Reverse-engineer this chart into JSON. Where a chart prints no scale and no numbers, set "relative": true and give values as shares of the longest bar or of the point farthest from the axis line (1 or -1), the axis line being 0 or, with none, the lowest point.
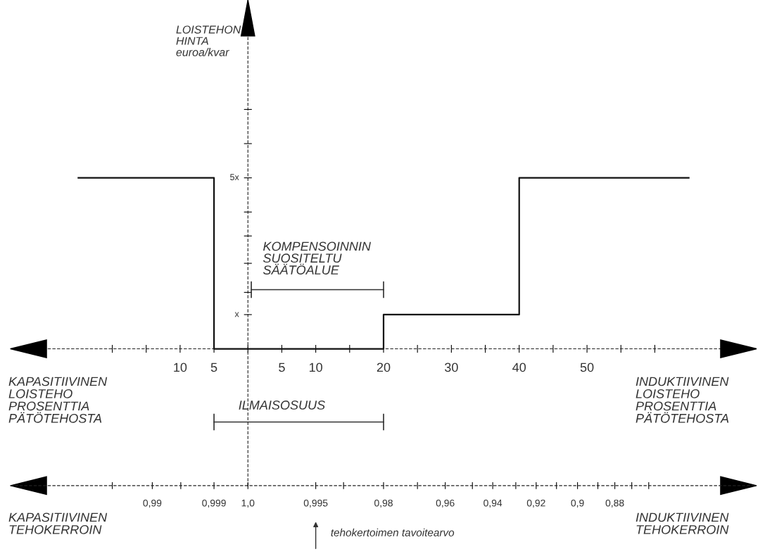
{
  "chart_data": {
    "type": "step",
    "relative": true,
    "series": [
      {
        "color": "#111111",
        "x": [
          -25,
          -5,
          20,
          40,
          65
        ],
        "values": [
          1,
          0,
          0.2,
          1,
          1
        ]
      }
    ],
    "xlim": [
      -35,
      75
    ],
    "xticks": [
      {
        "value": -20,
        "label": null
      },
      {
        "value": -15,
        "label": null
      },
      {
        "value": -10,
        "label": "10"
      },
      {
        "value": -5,
        "label": "5"
      },
      {
        "value": 0,
        "label": null
      },
      5,
      10,
      {
        "value": 15,
        "label": null
      },
      20,
      {
        "value": 25,
        "label": null
      },
      30,
      {
        "value": 35,
        "label": null
      },
      40,
      {
        "value": 45,
        "label": null
      },
      50,
      {
        "value": 55,
        "label": null
      },
      {
        "value": 60,
        "label": null
      }
    ],
    "annotations": [
      "KAPASITIIVINEN\nLOISTEHO\nPROSENTTIA\nPÄTÖTEHOSTA",
      "INDUKTIIVINEN\nLOISTEHO\nPROSENTTIA\nPÄTÖTEHOSTA",
      "KAPASITIIVINEN\nTEHOKERROIN",
      "INDUKTIIVINEN\nTEHOKERROIN",
      "x",
      "5x",
      "KOMPENSOINNIN\nSUOSITELTU\nSÄÄTÖALUE",
      "ILMAISOSUUS",
      "tehokertoimen tavoitearvo",
      "0,99",
      "0,999",
      "1,0",
      "0,995",
      "0,98",
      "0,96",
      "0,94",
      "0,92",
      "0,9",
      "0,88",
      "LOISTEHON\nHINTA\neuroa/kvar"
    ],
    "line_style": "solid",
    "marker": "none"
  }
}
